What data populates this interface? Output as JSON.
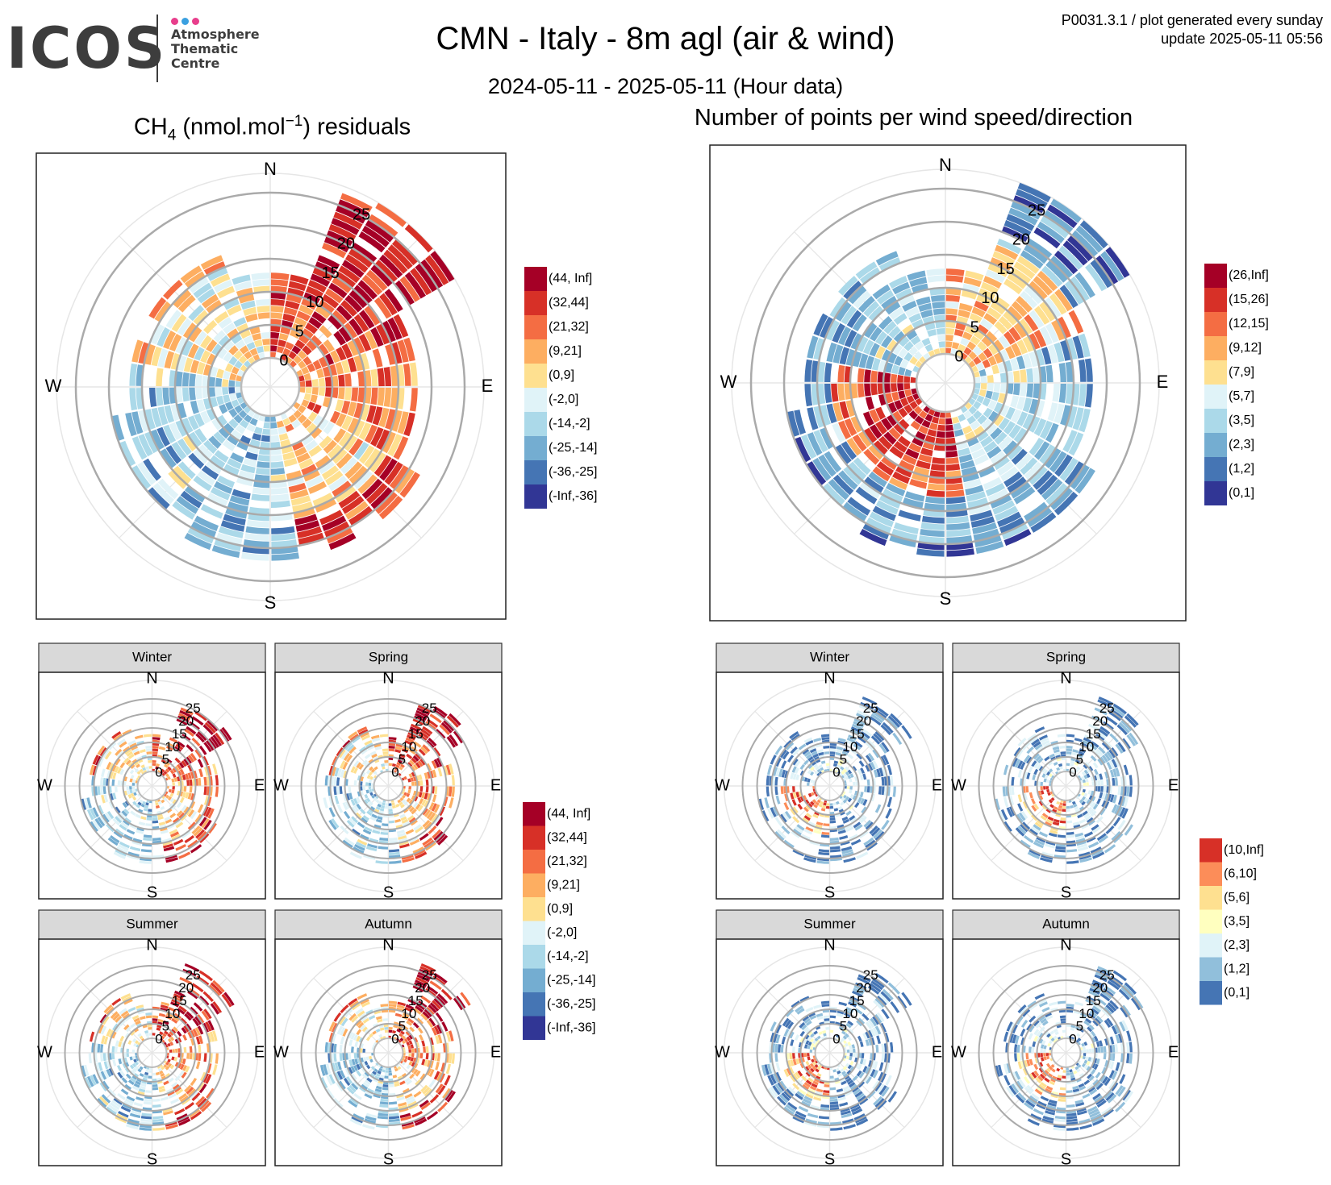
{
  "logo": {
    "word": "ICOS",
    "sub": "Atmosphere\nThematic\nCentre",
    "dot_colors": [
      "#e83e8c",
      "#3aa0e0",
      "#e83e8c"
    ]
  },
  "header": {
    "title": "CMN - Italy - 8m agl (air & wind)",
    "subtitle": "2024-05-11 - 2025-05-11 (Hour data)",
    "meta_line1": "P0031.3.1 / plot generated every sunday",
    "meta_line2": "update  2025-05-11 05:56"
  },
  "panels": {
    "left_title_species": "CH",
    "left_title_sub": "4",
    "left_title_mid": " (nmol.mol",
    "left_title_sup": "−1",
    "left_title_end": ") residuals",
    "right_title": "Number of points per wind speed/direction"
  },
  "compass": {
    "n": "N",
    "e": "E",
    "s": "S",
    "w": "W"
  },
  "seasons": [
    "Winter",
    "Spring",
    "Summer",
    "Autumn"
  ],
  "chart_data": [
    {
      "type": "heatmap",
      "title": "CH4 (nmol.mol-1) residuals",
      "polar": true,
      "radial_ticks": [
        0,
        5,
        10,
        15,
        20,
        25
      ],
      "legend": [
        "(44, Inf]",
        "(32,44]",
        "(21,32]",
        "(9,21]",
        "(0,9]",
        "(-2,0]",
        "(-14,-2]",
        "(-25,-14]",
        "(-36,-25]",
        "(-Inf,-36]"
      ],
      "legend_colors": [
        "#a50026",
        "#d73027",
        "#f46d43",
        "#fdae61",
        "#fee090",
        "#e0f3f8",
        "#abd9e9",
        "#74add1",
        "#4575b4",
        "#313695"
      ]
    },
    {
      "type": "heatmap",
      "title": "Number of points per wind speed/direction",
      "polar": true,
      "radial_ticks": [
        0,
        5,
        10,
        15,
        20,
        25
      ],
      "legend": [
        "(26,Inf]",
        "(15,26]",
        "(12,15]",
        "(9,12]",
        "(7,9]",
        "(5,7]",
        "(3,5]",
        "(2,3]",
        "(1,2]",
        "(0,1]"
      ],
      "legend_colors": [
        "#a50026",
        "#d73027",
        "#f46d43",
        "#fdae61",
        "#fee090",
        "#e0f3f8",
        "#abd9e9",
        "#74add1",
        "#4575b4",
        "#313695"
      ]
    },
    {
      "type": "heatmap",
      "title": "",
      "polar": true,
      "facets": [
        "Winter",
        "Spring",
        "Summer",
        "Autumn"
      ],
      "radial_ticks": [
        0,
        5,
        10,
        15,
        20,
        25
      ],
      "legend": [
        "(44, Inf]",
        "(32,44]",
        "(21,32]",
        "(9,21]",
        "(0,9]",
        "(-2,0]",
        "(-14,-2]",
        "(-25,-14]",
        "(-36,-25]",
        "(-Inf,-36]"
      ],
      "legend_colors": [
        "#a50026",
        "#d73027",
        "#f46d43",
        "#fdae61",
        "#fee090",
        "#e0f3f8",
        "#abd9e9",
        "#74add1",
        "#4575b4",
        "#313695"
      ]
    },
    {
      "type": "heatmap",
      "title": "",
      "polar": true,
      "facets": [
        "Winter",
        "Spring",
        "Summer",
        "Autumn"
      ],
      "radial_ticks": [
        0,
        5,
        10,
        15,
        20,
        25
      ],
      "legend": [
        "(10,Inf]",
        "(6,10]",
        "(5,6]",
        "(3,5]",
        "(2,3]",
        "(1,2]",
        "(0,1]"
      ],
      "legend_colors": [
        "#d73027",
        "#fc8d59",
        "#fee090",
        "#ffffbf",
        "#e0f3f8",
        "#91bfdb",
        "#4575b4"
      ]
    }
  ]
}
